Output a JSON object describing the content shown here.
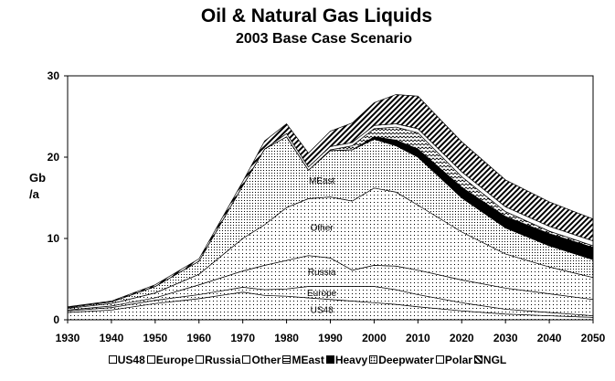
{
  "header": {
    "title": "Oil & Natural Gas Liquids",
    "subtitle": "2003 Base Case Scenario"
  },
  "chart_data": {
    "type": "area",
    "title": "Oil & Natural Gas Liquids",
    "subtitle": "2003 Base Case Scenario",
    "ylabel": "Gb /a",
    "ylabel_lines": [
      "Gb",
      "/a"
    ],
    "xlabel": "",
    "xlim": [
      1930,
      2050
    ],
    "ylim": [
      0,
      30
    ],
    "x_ticks": [
      1930,
      1940,
      1950,
      1960,
      1970,
      1980,
      1990,
      2000,
      2010,
      2020,
      2030,
      2040,
      2050
    ],
    "y_ticks": [
      0,
      10,
      20,
      30
    ],
    "grid": false,
    "legend_position": "bottom",
    "stacking": "stacked",
    "x": [
      1930,
      1940,
      1950,
      1960,
      1970,
      1975,
      1980,
      1985,
      1990,
      1995,
      2000,
      2005,
      2010,
      2020,
      2030,
      2040,
      2050
    ],
    "series": [
      {
        "name": "US48",
        "values": [
          0.9,
          1.2,
          2.0,
          2.6,
          3.4,
          3.0,
          2.9,
          2.7,
          2.5,
          2.3,
          2.1,
          1.9,
          1.6,
          1.1,
          0.7,
          0.5,
          0.3
        ]
      },
      {
        "name": "Europe",
        "values": [
          0.2,
          0.3,
          0.4,
          0.5,
          0.6,
          0.7,
          0.9,
          1.4,
          1.6,
          1.8,
          2.0,
          1.8,
          1.5,
          1.0,
          0.6,
          0.4,
          0.2
        ]
      },
      {
        "name": "Russia",
        "values": [
          0.1,
          0.2,
          0.3,
          1.2,
          2.0,
          3.0,
          3.5,
          3.8,
          3.5,
          2.0,
          2.6,
          2.9,
          3.0,
          2.8,
          2.6,
          2.3,
          2.0
        ]
      },
      {
        "name": "Other",
        "values": [
          0.2,
          0.3,
          0.6,
          1.3,
          4.0,
          5.0,
          6.5,
          7.0,
          7.5,
          8.5,
          9.5,
          9.1,
          8.0,
          5.9,
          4.2,
          3.3,
          2.7
        ]
      },
      {
        "name": "MEast",
        "values": [
          0.1,
          0.2,
          0.8,
          1.6,
          6.5,
          9.3,
          8.7,
          3.5,
          5.7,
          6.3,
          6.0,
          5.7,
          5.9,
          4.2,
          3.2,
          2.6,
          2.2
        ]
      },
      {
        "name": "Heavy",
        "values": [
          0,
          0,
          0,
          0,
          0,
          0,
          0,
          0,
          0,
          0,
          0.3,
          0.7,
          1.0,
          1.3,
          1.4,
          1.5,
          1.5
        ]
      },
      {
        "name": "Deepwater",
        "values": [
          0,
          0,
          0,
          0,
          0,
          0,
          0,
          0,
          0.1,
          0.5,
          1.0,
          1.6,
          2.0,
          1.3,
          0.6,
          0.3,
          0.2
        ]
      },
      {
        "name": "Polar",
        "values": [
          0,
          0,
          0,
          0,
          0,
          0,
          0.4,
          0.4,
          0.4,
          0.4,
          0.4,
          0.4,
          0.5,
          0.6,
          0.6,
          0.6,
          0.6
        ]
      },
      {
        "name": "NGL",
        "values": [
          0.1,
          0.1,
          0.2,
          0.3,
          0.5,
          1.0,
          1.2,
          1.7,
          1.9,
          2.4,
          2.8,
          3.6,
          4.0,
          3.7,
          3.3,
          3.0,
          2.7
        ]
      }
    ],
    "area_labels": [
      "MEast",
      "Other",
      "Russia",
      "Europe",
      "US48"
    ]
  },
  "colors": {
    "background": "#ffffff",
    "ink": "#000000"
  },
  "legend": {
    "items": [
      {
        "name": "US48",
        "swatch": "white"
      },
      {
        "name": "Europe",
        "swatch": "white"
      },
      {
        "name": "Russia",
        "swatch": "white"
      },
      {
        "name": "Other",
        "swatch": "white"
      },
      {
        "name": "MEast",
        "swatch": "wave"
      },
      {
        "name": "Heavy",
        "swatch": "black"
      },
      {
        "name": "Deepwater",
        "swatch": "dots"
      },
      {
        "name": "Polar",
        "swatch": "white"
      },
      {
        "name": "NGL",
        "swatch": "diag"
      }
    ]
  }
}
